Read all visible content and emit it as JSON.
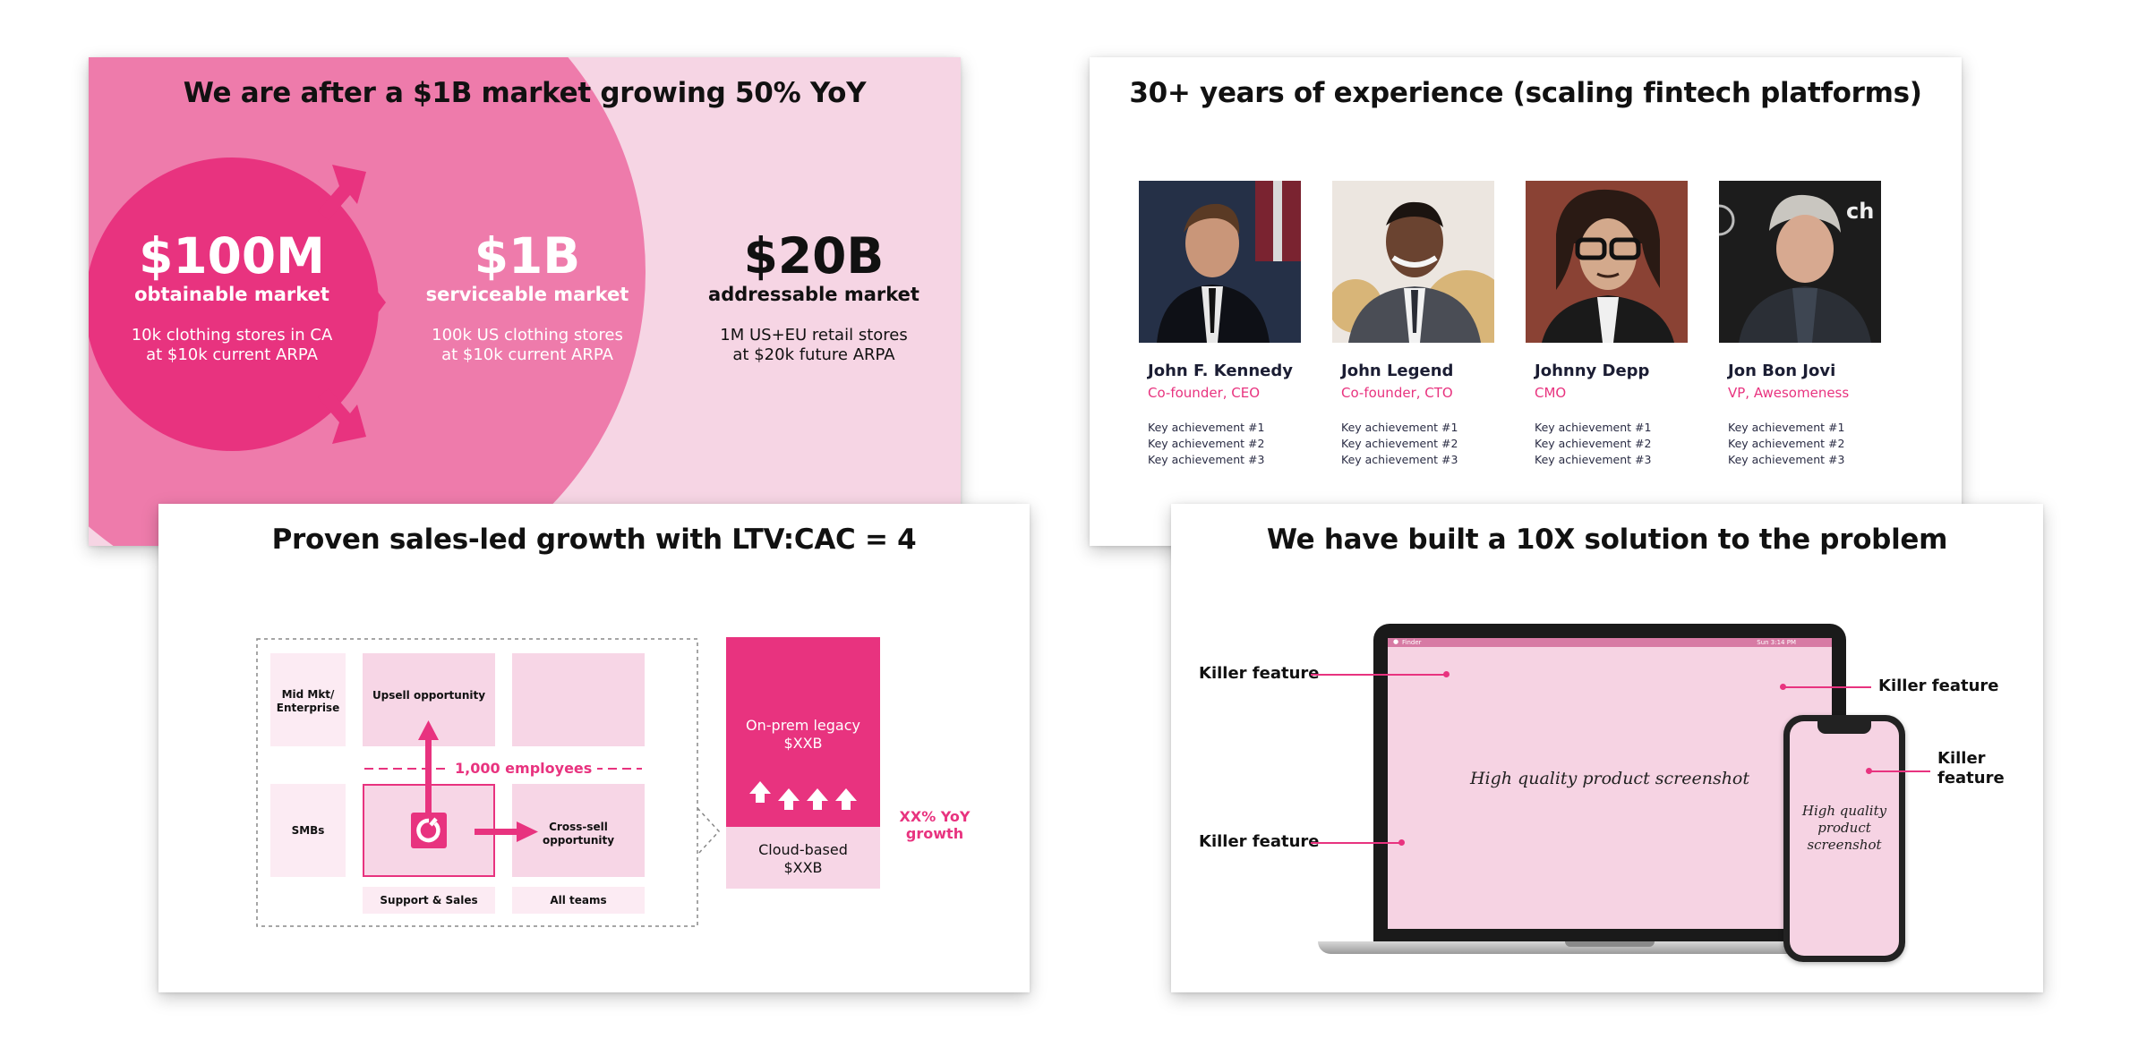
{
  "market_slide": {
    "title": "We are after a $1B market growing 50% YoY",
    "som": {
      "value": "$100M",
      "label": "obtainable market",
      "desc1": "10k clothing stores in CA",
      "desc2": "at $10k current ARPA"
    },
    "sam": {
      "value": "$1B",
      "label": "serviceable market",
      "desc1": "100k US clothing stores",
      "desc2": "at $10k current ARPA"
    },
    "tam": {
      "value": "$20B",
      "label": "addressable market",
      "desc1": "1M US+EU retail stores",
      "desc2": "at $20k future ARPA"
    },
    "colors": {
      "dark": "#e8337f",
      "mid": "#ee7bab",
      "light": "#f6d5e4"
    }
  },
  "team_slide": {
    "title": "30+ years of experience (scaling fintech platforms)",
    "members": [
      {
        "name": "John F. Kennedy",
        "role": "Co-founder, CEO",
        "a1": "Key achievement #1",
        "a2": "Key achievement #2",
        "a3": "Key achievement #3"
      },
      {
        "name": "John Legend",
        "role": "Co-founder, CTO",
        "a1": "Key achievement #1",
        "a2": "Key achievement #2",
        "a3": "Key achievement #3"
      },
      {
        "name": "Johnny Depp",
        "role": "CMO",
        "a1": "Key achievement #1",
        "a2": "Key achievement #2",
        "a3": "Key achievement #3"
      },
      {
        "name": "Jon Bon Jovi",
        "role": "VP, Awesomeness",
        "a1": "Key achievement #1",
        "a2": "Key achievement #2",
        "a3": "Key achievement #3"
      }
    ]
  },
  "growth_slide": {
    "title": "Proven sales-led growth with LTV:CAC = 4",
    "row_mid": "Mid Mkt/ Enterprise",
    "row_smb": "SMBs",
    "upsell": "Upsell opportunity",
    "crosssell": "Cross-sell opportunity",
    "employees": "1,000 employees",
    "col_support": "Support & Sales",
    "col_all": "All teams",
    "onprem": "On-prem legacy",
    "onprem_value": "$XXB",
    "cloud": "Cloud-based",
    "cloud_value": "$XXB",
    "yoy": "XX% YoY growth"
  },
  "solution_slide": {
    "title": "We have built a 10X solution to the problem",
    "killer_feature": "Killer feature",
    "killer_1": "Killer",
    "killer_2": "feature",
    "laptop_screenshot": "High quality product screenshot",
    "phone_screenshot": "High quality product screenshot",
    "menubar_app": "Finder",
    "menubar_time": "Sun 3:14 PM"
  }
}
